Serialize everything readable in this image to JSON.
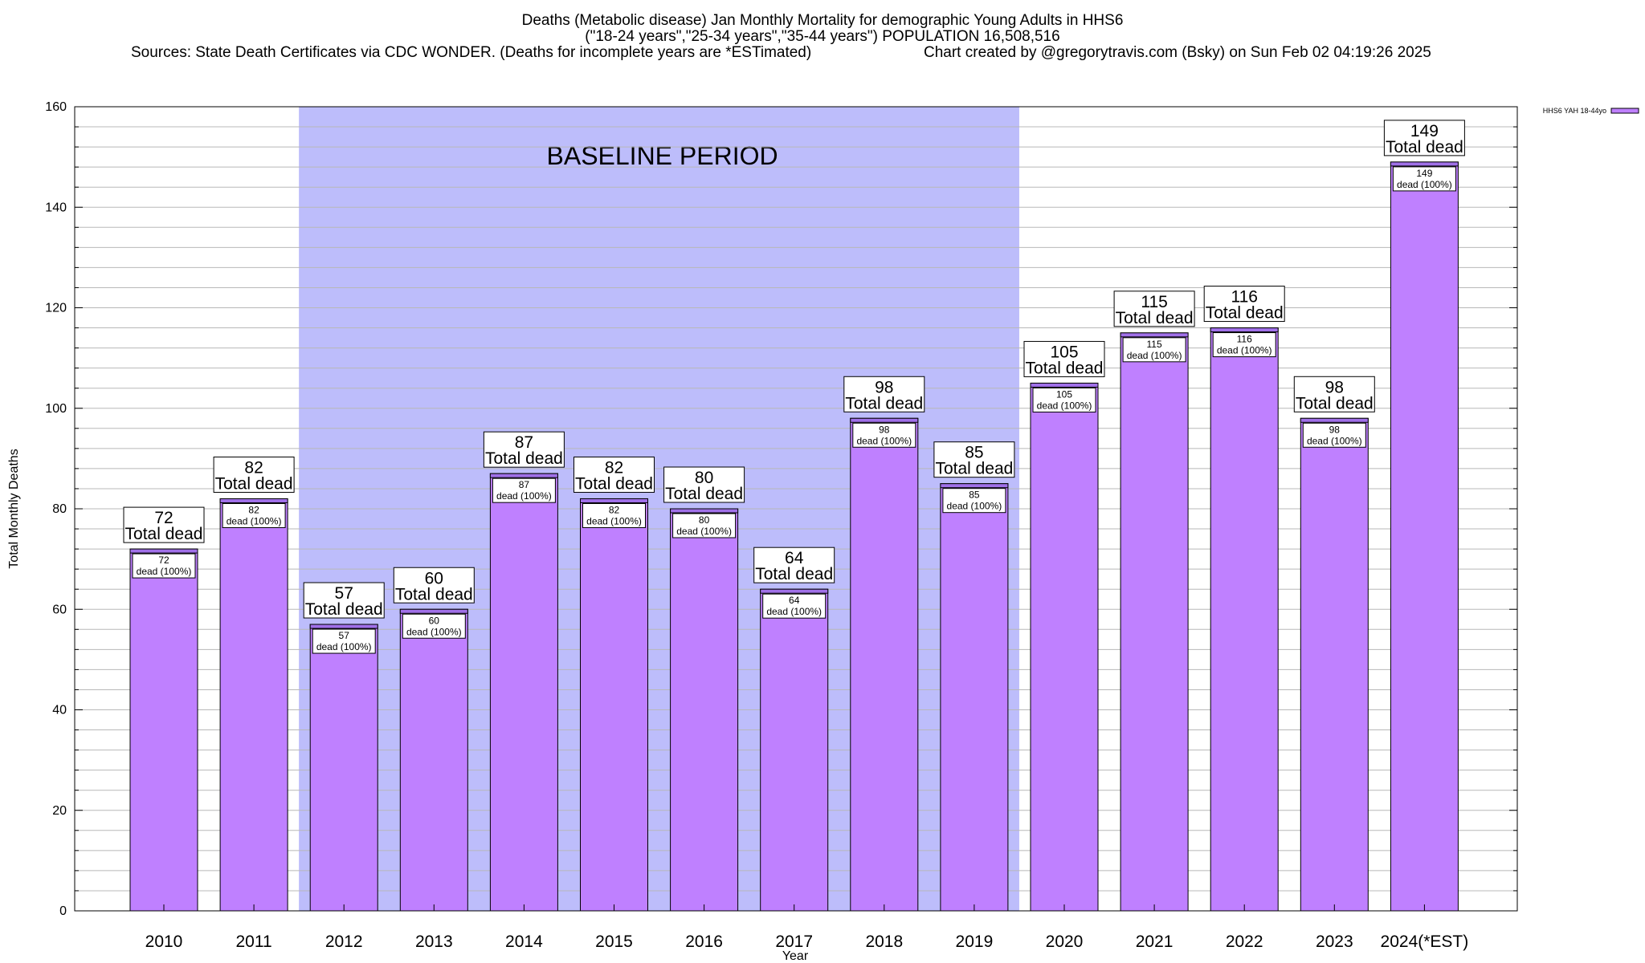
{
  "header": {
    "title_line1": "Deaths (Metabolic disease) Jan Monthly Mortality for demographic Young Adults in HHS6",
    "title_line2": "(\"18-24 years\",\"25-34 years\",\"35-44 years\") POPULATION 16,508,516",
    "sources": "Sources: State Death Certificates via CDC WONDER. (Deaths for incomplete years are *ESTimated)",
    "credit": "Chart created by @gregorytravis.com (Bsky) on Sun Feb 02 04:19:26 2025"
  },
  "chart_data": {
    "type": "bar",
    "xlabel": "Year",
    "ylabel": "Total Monthly Deaths",
    "ylim": [
      0,
      160
    ],
    "y_ticks": [
      0,
      20,
      40,
      60,
      80,
      100,
      120,
      140,
      160
    ],
    "y_minor_step": 4,
    "grid": true,
    "categories": [
      "2010",
      "2011",
      "2012",
      "2013",
      "2014",
      "2015",
      "2016",
      "2017",
      "2018",
      "2019",
      "2020",
      "2021",
      "2022",
      "2023",
      "2024(*EST)"
    ],
    "series": [
      {
        "name": "HHS6 YAH 18-44yo",
        "values": [
          72,
          82,
          57,
          60,
          87,
          82,
          80,
          64,
          98,
          85,
          105,
          115,
          116,
          98,
          149
        ]
      }
    ],
    "total_label_suffix": "Total dead",
    "inner_label_suffix": "dead (100%)",
    "baseline_region": {
      "label": "BASELINE PERIOD",
      "from_category": "2012",
      "to_category": "2019"
    },
    "legend_position": "top-right",
    "colors": {
      "bar_fill": "#bf80ff",
      "bar_cap": "#a070e8",
      "baseline_fill": "#bdbdfb",
      "grid": "#b8b8b8"
    }
  }
}
